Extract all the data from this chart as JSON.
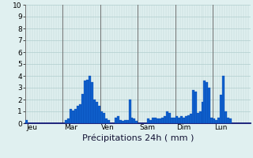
{
  "title": "Précipitations 24h ( mm )",
  "ylim": [
    0,
    10
  ],
  "yticks": [
    0,
    1,
    2,
    3,
    4,
    5,
    6,
    7,
    8,
    9,
    10
  ],
  "background_color": "#e0f0f0",
  "bar_color": "#1060cc",
  "bar_edge_color": "#0040aa",
  "grid_color_h": "#b0cece",
  "grid_color_v": "#b0cece",
  "day_sep_color": "#707070",
  "day_labels": [
    "Jeu",
    "Mar",
    "Ven",
    "Sam",
    "Dim",
    "Lun"
  ],
  "bars_per_day": 16,
  "title_fontsize": 8,
  "tick_fontsize": 6.5,
  "values": [
    0.3,
    0.0,
    0.0,
    0.0,
    0.0,
    0.0,
    0.0,
    0.0,
    0.0,
    0.0,
    0.0,
    0.0,
    0.0,
    0.0,
    0.0,
    0.0,
    0.0,
    0.3,
    0.4,
    1.2,
    1.1,
    1.2,
    1.5,
    1.6,
    2.5,
    3.6,
    3.7,
    4.0,
    3.5,
    2.0,
    1.8,
    1.5,
    1.0,
    0.9,
    0.4,
    0.3,
    0.0,
    0.0,
    0.5,
    0.6,
    0.3,
    0.2,
    0.3,
    0.3,
    2.0,
    0.5,
    0.4,
    0.2,
    0.0,
    0.0,
    0.0,
    0.0,
    0.4,
    0.3,
    0.5,
    0.5,
    0.4,
    0.4,
    0.5,
    0.6,
    1.0,
    0.9,
    0.5,
    0.5,
    0.6,
    0.5,
    0.6,
    0.5,
    0.6,
    0.7,
    0.8,
    2.8,
    2.7,
    0.9,
    1.0,
    1.8,
    3.6,
    3.5,
    3.0,
    0.5,
    0.4,
    0.3,
    0.5,
    2.4,
    4.0,
    1.0,
    0.5,
    0.4,
    0.0,
    0.0,
    0.0,
    0.0,
    0.0,
    0.0,
    0.0,
    0.0
  ]
}
